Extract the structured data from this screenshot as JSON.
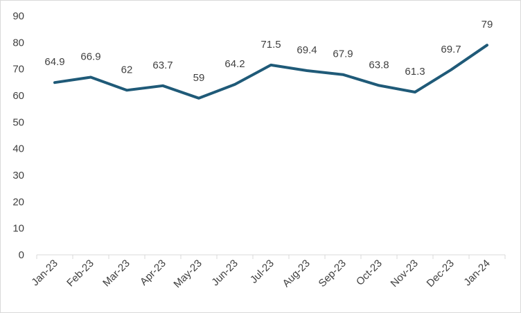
{
  "chart_data": {
    "type": "line",
    "categories": [
      "Jan-23",
      "Feb-23",
      "Mar-23",
      "Apr-23",
      "May-23",
      "Jun-23",
      "Jul-23",
      "Aug-23",
      "Sep-23",
      "Oct-23",
      "Nov-23",
      "Dec-23",
      "Jan-24"
    ],
    "series": [
      {
        "values": [
          64.9,
          66.9,
          62,
          63.7,
          59,
          64.2,
          71.5,
          69.4,
          67.9,
          63.8,
          61.3,
          69.7,
          79
        ]
      }
    ],
    "data_labels": [
      "64.9",
      "66.9",
      "62",
      "63.7",
      "59",
      "64.2",
      "71.5",
      "69.4",
      "67.9",
      "63.8",
      "61.3",
      "69.7",
      "79"
    ],
    "yticks": [
      "0",
      "10",
      "20",
      "30",
      "40",
      "50",
      "60",
      "70",
      "80",
      "90"
    ],
    "ylim": [
      0,
      90
    ],
    "grid": false,
    "legend": "none",
    "colors": {
      "line": "#1f5a78",
      "text": "#404040",
      "axis": "#d9d9d9"
    }
  }
}
